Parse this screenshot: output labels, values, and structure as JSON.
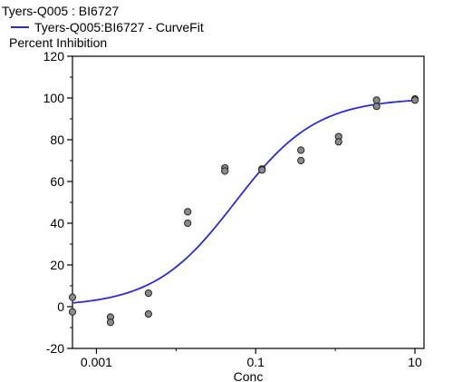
{
  "chart_data": {
    "type": "scatter",
    "title": "Tyers-Q005  : BI6727",
    "legend": {
      "entries": [
        {
          "name": "Tyers-Q005:BI6727 - CurveFit",
          "color": "#2b2bd6",
          "marker": "line"
        }
      ],
      "placement": "top-left"
    },
    "ylabel": "Percent Inhibition",
    "xlabel": "Conc",
    "x_scale": "log",
    "xlim": [
      0.0005,
      13
    ],
    "ylim": [
      -20,
      120
    ],
    "x_ticks": [
      0.001,
      0.1,
      10
    ],
    "x_tick_labels": [
      "0.001",
      "0.1",
      "10"
    ],
    "y_ticks": [
      -20,
      0,
      20,
      40,
      60,
      80,
      100,
      120
    ],
    "y_tick_labels": [
      "-20",
      "0",
      "20",
      "40",
      "60",
      "80",
      "100",
      "120"
    ],
    "grid": false,
    "series": [
      {
        "kind": "points",
        "color": "#8a8a8a",
        "x": [
          0.0005,
          0.0005,
          0.0015,
          0.0015,
          0.0045,
          0.0045,
          0.014,
          0.014,
          0.041,
          0.041,
          0.12,
          0.12,
          0.37,
          0.37,
          1.1,
          1.1,
          3.3,
          3.3,
          10,
          10
        ],
        "y": [
          4.5,
          -2.5,
          -5,
          -7.5,
          6.5,
          -3.5,
          45.5,
          40,
          66.5,
          65,
          66,
          65.5,
          75,
          70,
          81.5,
          79,
          99,
          96,
          99.5,
          99
        ]
      },
      {
        "kind": "curve",
        "name": "Tyers-Q005:BI6727 - CurveFit",
        "color": "#2b2bd6",
        "model": "four-parameter-logistic",
        "x_range": [
          0.0005,
          10
        ],
        "bottom": 0,
        "top": 100,
        "ec50": 0.055,
        "hill": 0.85
      }
    ]
  }
}
